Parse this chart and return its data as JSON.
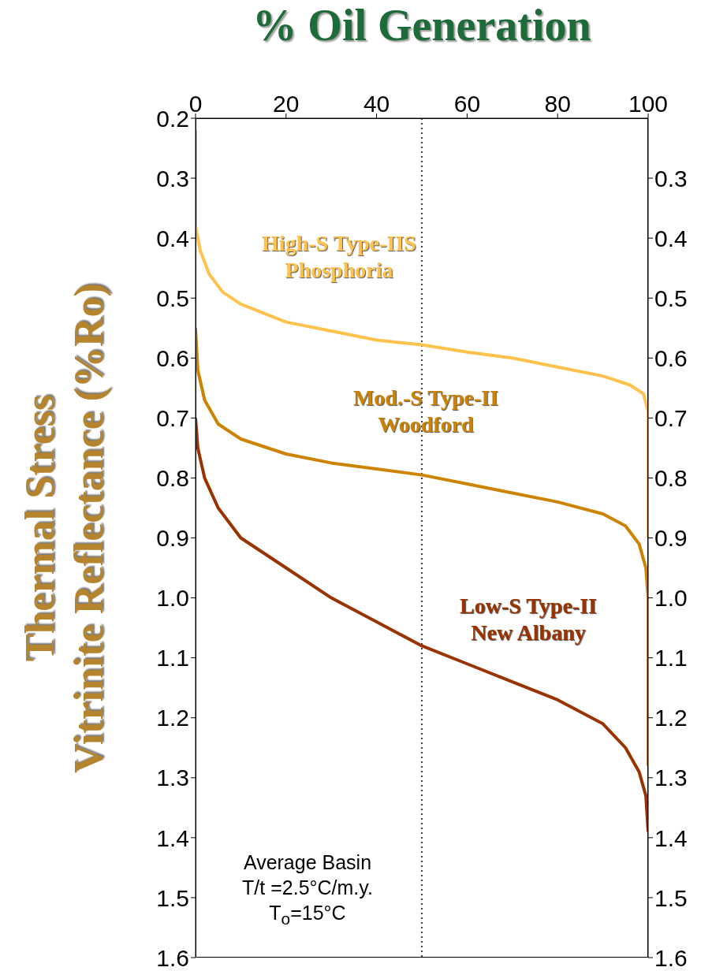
{
  "chart_data": {
    "type": "line",
    "title": "% Oil Generation",
    "ylabel": "Thermal Stress\nVitrinite Reflectance (%Ro)",
    "xlim": [
      0,
      100
    ],
    "xticks": [
      0,
      20,
      40,
      60,
      80,
      100
    ],
    "ylim": [
      1.6,
      0.2
    ],
    "yticks": [
      0.2,
      0.3,
      0.4,
      0.5,
      0.6,
      0.7,
      0.8,
      0.9,
      {
        "value": 1,
        "label": "1.0"
      },
      1.1,
      1.2,
      1.3,
      1.4,
      1.5,
      1.6
    ],
    "y2lim": [
      1.6,
      0.2
    ],
    "y2ticks": [
      0.3,
      0.4,
      0.5,
      0.6,
      0.7,
      0.8,
      0.9,
      {
        "value": 1,
        "label": "1.0"
      },
      1.1,
      1.2,
      1.3,
      1.4,
      1.5,
      1.6
    ],
    "series": [
      {
        "name": "High-S Type-IIS\nPhosphoria",
        "color": "#ffc34d",
        "x": [
          0,
          0,
          1,
          3,
          6,
          10,
          20,
          30,
          40,
          50,
          60,
          70,
          80,
          90,
          96,
          99,
          100,
          100
        ],
        "values": [
          0.22,
          0.38,
          0.42,
          0.46,
          0.49,
          0.51,
          0.54,
          0.555,
          0.57,
          0.578,
          0.59,
          0.6,
          0.615,
          0.63,
          0.645,
          0.66,
          0.69,
          0.9
        ]
      },
      {
        "name": "Mod.-S Type-II\nWoodford",
        "color": "#cc8400",
        "x": [
          0,
          0.5,
          2,
          5,
          10,
          20,
          30,
          40,
          50,
          60,
          70,
          80,
          90,
          95,
          98,
          99.5,
          100,
          100
        ],
        "values": [
          0.55,
          0.62,
          0.67,
          0.71,
          0.735,
          0.76,
          0.775,
          0.785,
          0.795,
          0.81,
          0.825,
          0.84,
          0.86,
          0.88,
          0.91,
          0.95,
          1.0,
          1.28
        ]
      },
      {
        "name": "Low-S Type-II\nNew Albany",
        "color": "#993300",
        "x": [
          0,
          0.5,
          2,
          5,
          10,
          20,
          30,
          40,
          50,
          60,
          70,
          80,
          90,
          95,
          98,
          99.5,
          100
        ],
        "values": [
          0.7,
          0.75,
          0.8,
          0.85,
          0.9,
          0.95,
          1.0,
          1.04,
          1.08,
          1.11,
          1.14,
          1.17,
          1.21,
          1.25,
          1.29,
          1.33,
          1.39
        ]
      }
    ],
    "ref_lines": [
      {
        "axis": "x",
        "value": 50,
        "color": "#000000",
        "line_style": "dotted"
      }
    ],
    "annotations": [
      "Average Basin\nT/t =2.5°C/m.y.\nT$_{o}$=15°C"
    ]
  }
}
